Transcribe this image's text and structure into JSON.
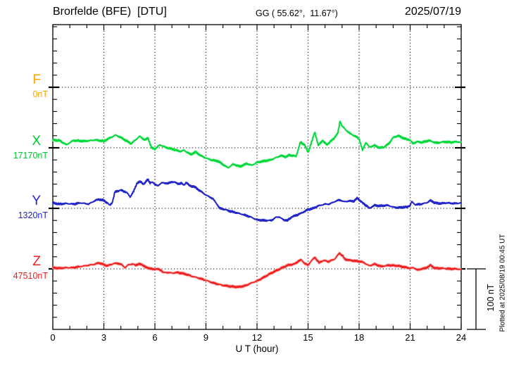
{
  "header": {
    "station_title": "Brorfelde (BFE)  [DTU]",
    "coords": "GG ( 55.62°,  11.67°)",
    "date": "2025/07/19"
  },
  "components": [
    {
      "id": "F",
      "label": "F",
      "value_label": "0nT",
      "color": "#FFA400"
    },
    {
      "id": "X",
      "label": "X",
      "value_label": "17170nT",
      "color": "#00C832"
    },
    {
      "id": "Y",
      "label": "Y",
      "value_label": "1320nT",
      "color": "#2326C9"
    },
    {
      "id": "Z",
      "label": "Z",
      "value_label": "47510nT",
      "color": "#EE2020"
    }
  ],
  "x_axis": {
    "label": "U T (hour)",
    "ticks": [
      0,
      3,
      6,
      9,
      12,
      15,
      18,
      21,
      24
    ],
    "minor_step_hours": 1,
    "range_hours": [
      0,
      24
    ]
  },
  "y_axis": {
    "minor_tick_nT": 20,
    "baseline_spacing_nT": 100
  },
  "scale_bar": {
    "label": "100 nT",
    "nT": 100
  },
  "footer_note": "Plotted at 2025/08/19 00:45 UT",
  "chart_data": {
    "type": "line",
    "title": "Brorfelde (BFE) [DTU] magnetogram 2025/07/19",
    "xlabel": "U T (hour)",
    "x_range_hours": [
      0,
      24
    ],
    "x_major_ticks": [
      0,
      3,
      6,
      9,
      12,
      15,
      18,
      21,
      24
    ],
    "grid": "dotted vertical lines every 3 h; dotted horizontal line at each component baseline",
    "scale_note": "baselines separated by 100 nT; values are offsets in nT from each baseline",
    "series": [
      {
        "name": "F",
        "color": "#FFA400",
        "baseline_label": "0nT",
        "note": "no trace plotted (flat baseline only)",
        "points": []
      },
      {
        "name": "X",
        "color": "#00C832",
        "baseline_label": "17170nT",
        "points": [
          [
            0,
            13
          ],
          [
            0.4,
            12
          ],
          [
            0.8,
            5
          ],
          [
            1.2,
            12
          ],
          [
            1.9,
            11
          ],
          [
            2.5,
            13
          ],
          [
            3,
            11
          ],
          [
            3.4,
            17
          ],
          [
            3.7,
            21
          ],
          [
            4,
            17
          ],
          [
            4.6,
            7
          ],
          [
            4.9,
            14
          ],
          [
            5.1,
            19
          ],
          [
            5.4,
            13
          ],
          [
            5.6,
            16
          ],
          [
            5.8,
            0
          ],
          [
            6,
            -2
          ],
          [
            6.3,
            5
          ],
          [
            6.6,
            1
          ],
          [
            7,
            -2
          ],
          [
            7.5,
            -6
          ],
          [
            7.7,
            -4
          ],
          [
            8.1,
            -11
          ],
          [
            8.4,
            -7
          ],
          [
            8.7,
            -13
          ],
          [
            9,
            -17
          ],
          [
            9.3,
            -20
          ],
          [
            9.7,
            -22
          ],
          [
            10.3,
            -33
          ],
          [
            10.6,
            -27
          ],
          [
            11,
            -31
          ],
          [
            11.4,
            -26
          ],
          [
            11.7,
            -29
          ],
          [
            12,
            -24
          ],
          [
            12.4,
            -22
          ],
          [
            12.8,
            -20
          ],
          [
            13.4,
            -13
          ],
          [
            13.7,
            -15
          ],
          [
            13.9,
            -12
          ],
          [
            14.3,
            -14
          ],
          [
            14.55,
            9
          ],
          [
            14.8,
            5
          ],
          [
            15,
            -8
          ],
          [
            15.4,
            26
          ],
          [
            15.6,
            4
          ],
          [
            15.85,
            12
          ],
          [
            16.1,
            5
          ],
          [
            16.5,
            15
          ],
          [
            16.75,
            24
          ],
          [
            16.88,
            44
          ],
          [
            17,
            36
          ],
          [
            17.2,
            30
          ],
          [
            17.45,
            24
          ],
          [
            17.9,
            17
          ],
          [
            18,
            15
          ],
          [
            18.2,
            -4
          ],
          [
            18.4,
            9
          ],
          [
            18.6,
            1
          ],
          [
            18.9,
            4
          ],
          [
            19.2,
            0
          ],
          [
            19.45,
            1
          ],
          [
            19.75,
            7
          ],
          [
            20,
            17
          ],
          [
            20.3,
            20
          ],
          [
            20.6,
            16
          ],
          [
            20.8,
            14
          ],
          [
            21,
            13
          ],
          [
            21.15,
            7
          ],
          [
            21.4,
            10
          ],
          [
            21.7,
            9
          ],
          [
            22.1,
            12
          ],
          [
            22.55,
            8
          ],
          [
            23,
            10
          ],
          [
            23.4,
            9
          ],
          [
            23.7,
            10
          ],
          [
            24,
            9
          ]
        ]
      },
      {
        "name": "Y",
        "color": "#2326C9",
        "baseline_label": "1320nT",
        "points": [
          [
            0,
            9
          ],
          [
            0.4,
            7
          ],
          [
            0.8,
            8
          ],
          [
            1.2,
            7
          ],
          [
            1.65,
            9
          ],
          [
            2.1,
            7
          ],
          [
            2.5,
            13
          ],
          [
            2.7,
            15
          ],
          [
            3,
            13
          ],
          [
            3.2,
            9
          ],
          [
            3.35,
            5
          ],
          [
            3.5,
            10
          ],
          [
            3.65,
            27
          ],
          [
            3.85,
            29
          ],
          [
            4,
            30
          ],
          [
            4.2,
            28
          ],
          [
            4.35,
            26
          ],
          [
            4.55,
            19
          ],
          [
            4.75,
            28
          ],
          [
            4.95,
            42
          ],
          [
            5.15,
            44
          ],
          [
            5.35,
            40
          ],
          [
            5.5,
            45
          ],
          [
            5.6,
            48
          ],
          [
            5.7,
            42
          ],
          [
            5.85,
            43
          ],
          [
            6,
            40
          ],
          [
            6.2,
            37
          ],
          [
            6.4,
            43
          ],
          [
            6.6,
            41
          ],
          [
            6.8,
            42
          ],
          [
            7.15,
            44
          ],
          [
            7.35,
            40
          ],
          [
            7.55,
            42
          ],
          [
            7.7,
            38
          ],
          [
            7.85,
            43
          ],
          [
            8.05,
            37
          ],
          [
            8.3,
            36
          ],
          [
            8.7,
            28
          ],
          [
            9,
            22
          ],
          [
            9.4,
            16
          ],
          [
            9.65,
            7
          ],
          [
            9.8,
            0
          ],
          [
            10,
            -1
          ],
          [
            10.45,
            -5
          ],
          [
            10.75,
            -7
          ],
          [
            11.15,
            -10
          ],
          [
            11.6,
            -14
          ],
          [
            12,
            -19
          ],
          [
            12.4,
            -20
          ],
          [
            12.85,
            -20
          ],
          [
            13.1,
            -15
          ],
          [
            13.3,
            -14
          ],
          [
            13.55,
            -19
          ],
          [
            13.8,
            -20
          ],
          [
            14.05,
            -14
          ],
          [
            14.35,
            -11
          ],
          [
            14.6,
            -8
          ],
          [
            15,
            -2
          ],
          [
            15.3,
            0
          ],
          [
            15.6,
            4
          ],
          [
            16,
            7
          ],
          [
            16.25,
            7
          ],
          [
            16.55,
            11
          ],
          [
            16.85,
            14
          ],
          [
            17.1,
            11
          ],
          [
            17.4,
            12
          ],
          [
            17.7,
            12
          ],
          [
            17.9,
            17
          ],
          [
            18.2,
            9
          ],
          [
            18.45,
            4
          ],
          [
            18.6,
            0
          ],
          [
            18.9,
            5
          ],
          [
            19.2,
            4
          ],
          [
            19.7,
            5
          ],
          [
            20,
            2
          ],
          [
            20.3,
            1
          ],
          [
            20.6,
            2
          ],
          [
            20.8,
            2
          ],
          [
            21,
            5
          ],
          [
            21.1,
            11
          ],
          [
            21.3,
            6
          ],
          [
            21.65,
            7
          ],
          [
            21.95,
            9
          ],
          [
            22.2,
            13
          ],
          [
            22.45,
            9
          ],
          [
            22.75,
            8
          ],
          [
            23.15,
            9
          ],
          [
            23.6,
            8
          ],
          [
            24,
            9
          ]
        ]
      },
      {
        "name": "Z",
        "color": "#EE2020",
        "baseline_label": "47510nT",
        "points": [
          [
            0,
            2
          ],
          [
            0.4,
            1
          ],
          [
            0.8,
            2
          ],
          [
            1.2,
            2
          ],
          [
            1.65,
            4
          ],
          [
            2.1,
            6
          ],
          [
            2.5,
            8
          ],
          [
            2.7,
            10
          ],
          [
            2.9,
            8
          ],
          [
            3.2,
            5
          ],
          [
            3.4,
            7
          ],
          [
            3.6,
            9
          ],
          [
            3.85,
            9
          ],
          [
            4.05,
            7
          ],
          [
            4.25,
            2
          ],
          [
            4.45,
            7
          ],
          [
            4.7,
            8
          ],
          [
            4.85,
            6
          ],
          [
            5.05,
            8
          ],
          [
            5.25,
            7
          ],
          [
            5.5,
            2
          ],
          [
            5.7,
            1
          ],
          [
            5.9,
            -1
          ],
          [
            6.1,
            0
          ],
          [
            6.35,
            -2
          ],
          [
            6.5,
            -6
          ],
          [
            6.75,
            -6
          ],
          [
            7.05,
            -7
          ],
          [
            7.3,
            -6
          ],
          [
            7.55,
            -7
          ],
          [
            7.85,
            -9
          ],
          [
            8.15,
            -12
          ],
          [
            8.55,
            -15
          ],
          [
            9,
            -19
          ],
          [
            9.4,
            -23
          ],
          [
            9.95,
            -27
          ],
          [
            10.45,
            -29
          ],
          [
            10.9,
            -30
          ],
          [
            11.3,
            -28
          ],
          [
            11.7,
            -23
          ],
          [
            12,
            -20
          ],
          [
            12.4,
            -14
          ],
          [
            12.7,
            -9
          ],
          [
            13.05,
            -4
          ],
          [
            13.35,
            0
          ],
          [
            13.8,
            6
          ],
          [
            14.2,
            8
          ],
          [
            14.45,
            13
          ],
          [
            14.6,
            15
          ],
          [
            14.8,
            9
          ],
          [
            15,
            6
          ],
          [
            15.15,
            12
          ],
          [
            15.4,
            19
          ],
          [
            15.65,
            10
          ],
          [
            15.9,
            14
          ],
          [
            16.2,
            12
          ],
          [
            16.55,
            16
          ],
          [
            16.85,
            26
          ],
          [
            17.05,
            21
          ],
          [
            17.15,
            16
          ],
          [
            17.5,
            14
          ],
          [
            17.8,
            13
          ],
          [
            18.1,
            12
          ],
          [
            18.3,
            10
          ],
          [
            18.6,
            5
          ],
          [
            18.9,
            8
          ],
          [
            19.3,
            4
          ],
          [
            19.75,
            6
          ],
          [
            20.3,
            5
          ],
          [
            21,
            1
          ],
          [
            21.2,
            2
          ],
          [
            21.45,
            -2
          ],
          [
            21.65,
            0
          ],
          [
            21.9,
            1
          ],
          [
            22.2,
            6
          ],
          [
            22.45,
            1
          ],
          [
            22.85,
            1
          ],
          [
            23.3,
            0
          ],
          [
            23.7,
            0
          ],
          [
            24,
            -1
          ]
        ]
      }
    ]
  }
}
